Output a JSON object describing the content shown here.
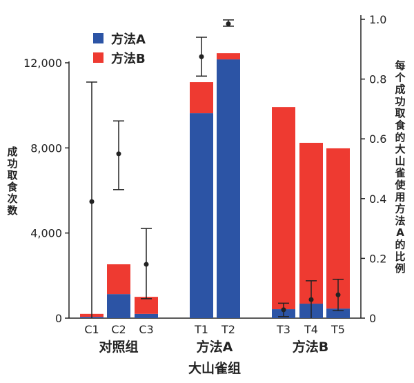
{
  "chart_data": {
    "type": "bar",
    "stacked": true,
    "categories": [
      "C1",
      "C2",
      "C3",
      "T1",
      "T2",
      "T3",
      "T4",
      "T5"
    ],
    "groups": [
      {
        "label": "对照组",
        "categories": [
          "C1",
          "C2",
          "C3"
        ]
      },
      {
        "label": "方法A",
        "categories": [
          "T1",
          "T2"
        ]
      },
      {
        "label": "方法B",
        "categories": [
          "T3",
          "T4",
          "T5"
        ]
      }
    ],
    "xlabel": "大山雀组",
    "ylabel": "成功取食次数",
    "ylabel_right": "每个成功取食的大山雀使用方法A的比例",
    "ylim": [
      0,
      12000
    ],
    "yticks": [
      "0",
      "4,000",
      "8,000",
      "12,000"
    ],
    "ylim_right": [
      0,
      1.0
    ],
    "yticks_right": [
      "0",
      "0.2",
      "0.4",
      "0.6",
      "0.8",
      "1.0"
    ],
    "series": [
      {
        "name": "方法A",
        "color": "#2c54a5",
        "values": [
          60,
          1130,
          200,
          9630,
          12160,
          420,
          680,
          450
        ]
      },
      {
        "name": "方法B",
        "color": "#ee3a31",
        "values": [
          140,
          1400,
          800,
          1460,
          290,
          9500,
          7560,
          7530
        ]
      }
    ],
    "proportion_points": {
      "axis": "right",
      "values": [
        0.39,
        0.55,
        0.18,
        0.875,
        0.985,
        0.028,
        0.062,
        0.078
      ],
      "error_low": [
        0.0,
        0.43,
        0.065,
        0.81,
        0.977,
        0.005,
        0.0,
        0.025
      ],
      "error_high": [
        0.79,
        0.66,
        0.3,
        0.94,
        0.998,
        0.05,
        0.125,
        0.13
      ]
    },
    "legend": {
      "placement": "top-left",
      "entries": [
        "方法A",
        "方法B"
      ]
    },
    "grid": false
  }
}
